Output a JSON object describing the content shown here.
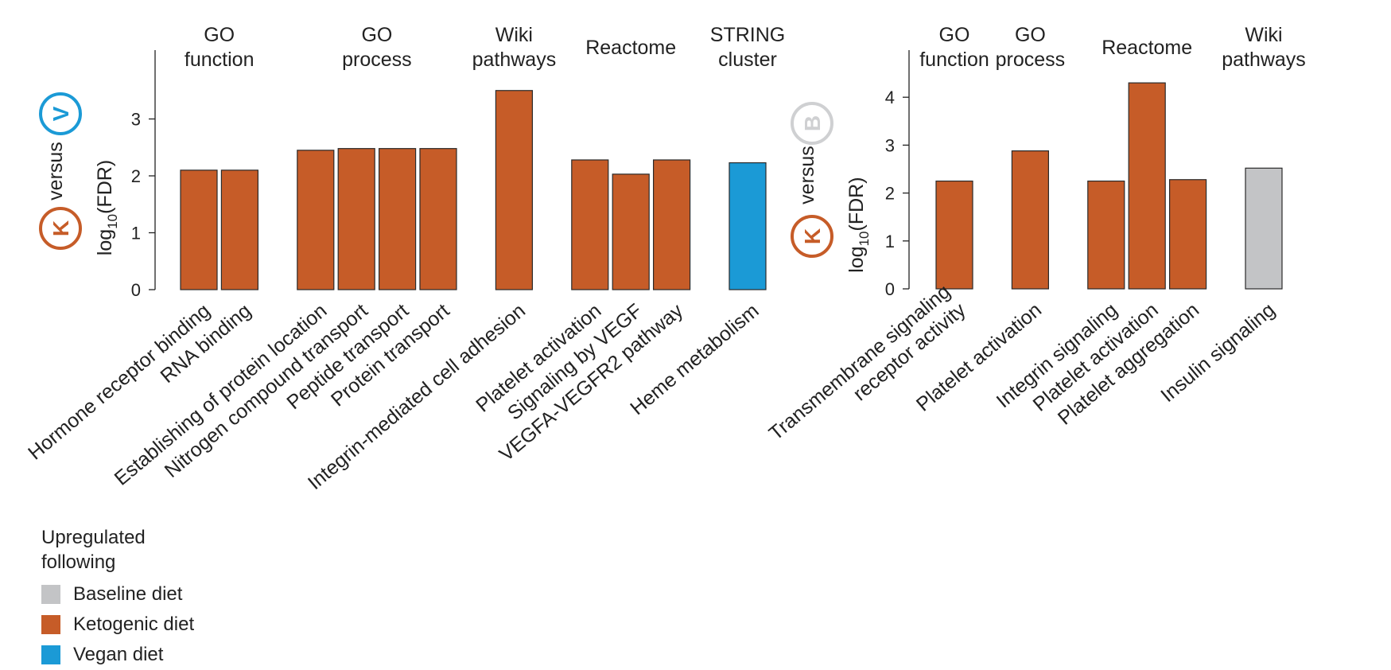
{
  "colors": {
    "baseline": "#c3c4c6",
    "ketogenic": "#c65c28",
    "vegan": "#1b9ad6",
    "axis": "#222222",
    "bar_stroke": "#2a2a2a"
  },
  "chart_data": [
    {
      "type": "bar",
      "comparison": {
        "left_letter": "K",
        "right_letter": "V",
        "word": "versus"
      },
      "ylabel": "log10(FDR)",
      "ylim": [
        0,
        4
      ],
      "yticks": [
        0,
        1,
        2,
        3
      ],
      "groups": [
        {
          "label": [
            "GO",
            "function"
          ],
          "bars": [
            {
              "category": "Hormone receptor binding",
              "value": 2.1,
              "series": "ketogenic"
            },
            {
              "category": "RNA binding",
              "value": 2.1,
              "series": "ketogenic"
            }
          ]
        },
        {
          "label": [
            "GO",
            "process"
          ],
          "bars": [
            {
              "category": "Establishing of protein location",
              "value": 2.45,
              "series": "ketogenic"
            },
            {
              "category": "Nitrogen compound transport",
              "value": 2.48,
              "series": "ketogenic"
            },
            {
              "category": "Peptide transport",
              "value": 2.48,
              "series": "ketogenic"
            },
            {
              "category": "Protein transport",
              "value": 2.48,
              "series": "ketogenic"
            }
          ]
        },
        {
          "label": [
            "Wiki",
            "pathways"
          ],
          "bars": [
            {
              "category": "Integrin-mediated cell adhesion",
              "value": 3.5,
              "series": "ketogenic"
            }
          ]
        },
        {
          "label": [
            "Reactome"
          ],
          "bars": [
            {
              "category": "Platelet activation",
              "value": 2.28,
              "series": "ketogenic"
            },
            {
              "category": "Signaling by VEGF",
              "value": 2.03,
              "series": "ketogenic"
            },
            {
              "category": "VEGFA-VEGFR2 pathway",
              "value": 2.28,
              "series": "ketogenic"
            }
          ]
        },
        {
          "label": [
            "STRING",
            "cluster"
          ],
          "bars": [
            {
              "category": "Heme metabolism",
              "value": 2.23,
              "series": "vegan"
            }
          ]
        }
      ]
    },
    {
      "type": "bar",
      "comparison": {
        "left_letter": "K",
        "right_letter": "B",
        "word": "versus"
      },
      "ylabel": "log10(FDR)",
      "ylim": [
        0,
        5
      ],
      "yticks": [
        0,
        1,
        2,
        3,
        4
      ],
      "groups": [
        {
          "label": [
            "GO",
            "function"
          ],
          "bars": [
            {
              "category": [
                "Transmembrane signaling",
                "receptor activity"
              ],
              "value": 2.25,
              "series": "ketogenic"
            }
          ]
        },
        {
          "label": [
            "GO",
            "process"
          ],
          "bars": [
            {
              "category": "Platelet activation",
              "value": 2.88,
              "series": "ketogenic"
            }
          ]
        },
        {
          "label": [
            "Reactome"
          ],
          "bars": [
            {
              "category": "Integrin signaling",
              "value": 2.25,
              "series": "ketogenic"
            },
            {
              "category": "Platelet activation",
              "value": 4.3,
              "series": "ketogenic"
            },
            {
              "category": "Platelet aggregation",
              "value": 2.28,
              "series": "ketogenic"
            }
          ]
        },
        {
          "label": [
            "Wiki",
            "pathways"
          ],
          "bars": [
            {
              "category": "Insulin signaling",
              "value": 2.52,
              "series": "baseline"
            }
          ]
        }
      ]
    }
  ],
  "legend": {
    "title": "Upregulated\nfollowing",
    "items": [
      {
        "label": "Baseline diet",
        "series": "baseline"
      },
      {
        "label": "Ketogenic diet",
        "series": "ketogenic"
      },
      {
        "label": "Vegan diet",
        "series": "vegan"
      }
    ]
  }
}
